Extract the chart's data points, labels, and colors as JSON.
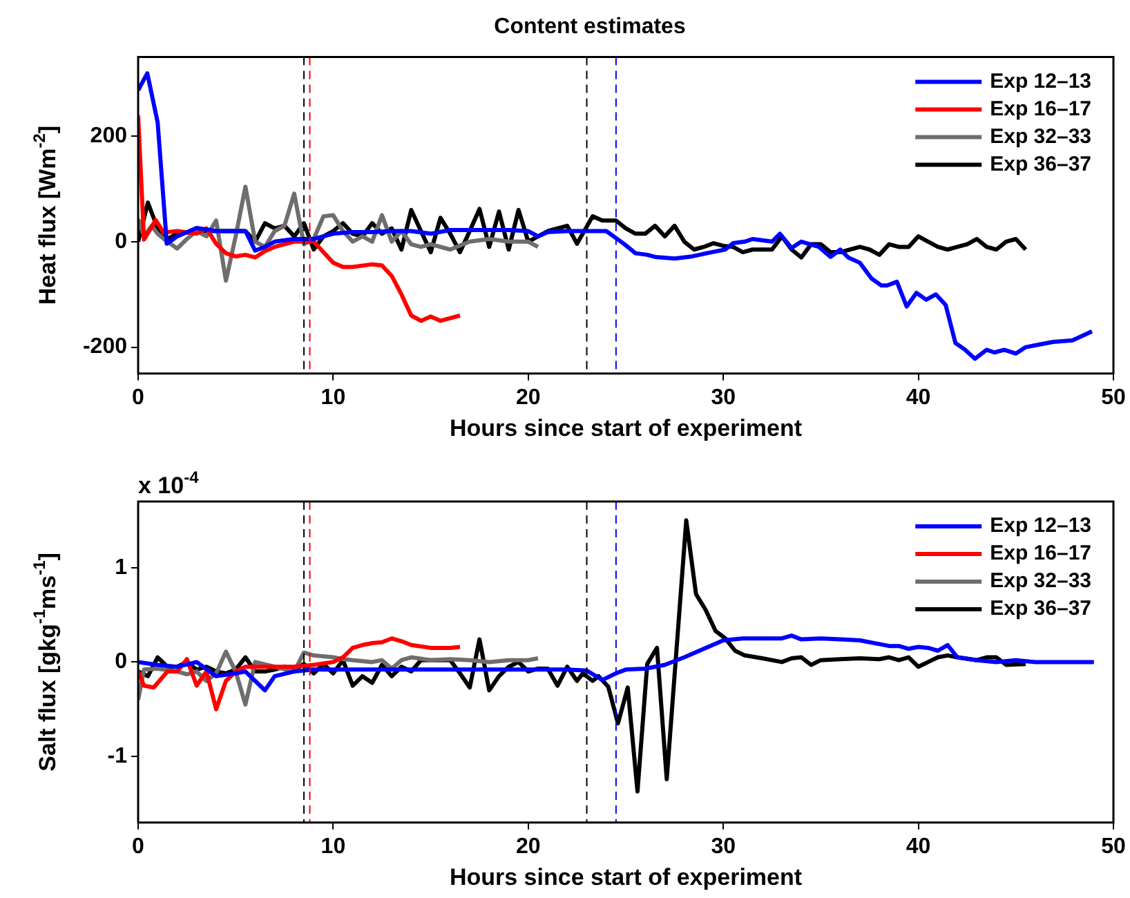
{
  "chart_data": [
    {
      "type": "line",
      "title": "Content estimates",
      "xlabel": "Hours since start of experiment",
      "ylabel": "Heat flux [Wm$^{-2}$]",
      "xlim": [
        0,
        50
      ],
      "xticks": [
        0,
        10,
        20,
        30,
        40,
        50
      ],
      "ylim": [
        -250,
        350
      ],
      "yticks": [
        -200,
        0,
        200
      ],
      "grid": false,
      "legend": "top right",
      "marker": "none",
      "ref_lines": [
        {
          "axis": "x",
          "value": 8.5,
          "color": "#000000",
          "line_style": "dashed"
        },
        {
          "axis": "x",
          "value": 8.8,
          "color": "#ff0000",
          "line_style": "dashed"
        },
        {
          "axis": "x",
          "value": 23,
          "color": "#000000",
          "line_style": "dashed"
        },
        {
          "axis": "x",
          "value": 24.5,
          "color": "#0000ff",
          "line_style": "dashed"
        }
      ],
      "series": [
        {
          "name": "Exp 12–13",
          "color": "#0000ff",
          "x": [
            0,
            0.47,
            1,
            1.47,
            2,
            3,
            4,
            5,
            5.5,
            6,
            6.5,
            7,
            8,
            9,
            10,
            11,
            12,
            13,
            14,
            15,
            16,
            17,
            18,
            19,
            20,
            20.5,
            21,
            22,
            23,
            24,
            24.9,
            25.5,
            26.1,
            26.5,
            27.5,
            28.4,
            29.4,
            30.1,
            30.5,
            31.1,
            31.5,
            32.5,
            32.9,
            33.5,
            34,
            34.9,
            35.5,
            36,
            36.4,
            37,
            37.6,
            38.1,
            38.4,
            38.9,
            39.4,
            39.9,
            40.4,
            40.9,
            41.4,
            41.9,
            42.4,
            42.9,
            43.5,
            43.9,
            44.4,
            45,
            45.5,
            46.2,
            46.9,
            47.9,
            48.9
          ],
          "values": [
            287,
            319,
            226,
            -4,
            10,
            26,
            20,
            20,
            20,
            -17,
            -10,
            0,
            5,
            5,
            15,
            18,
            18,
            20,
            20,
            15,
            22,
            22,
            22,
            22,
            20,
            10,
            18,
            20,
            20,
            20,
            -4,
            -22,
            -25,
            -29,
            -32,
            -28,
            -20,
            -15,
            -3,
            0,
            5,
            0,
            15,
            -12,
            0,
            -10,
            -29,
            -15,
            -30,
            -40,
            -70,
            -83,
            -83,
            -76,
            -123,
            -97,
            -110,
            -100,
            -120,
            -192,
            -205,
            -222,
            -205,
            -210,
            -205,
            -212,
            -200,
            -195,
            -190,
            -187,
            -170
          ]
        },
        {
          "name": "Exp 16–17",
          "color": "#ff0000",
          "x": [
            0,
            0.3,
            0.6,
            0.9,
            1.3,
            2,
            3,
            3.5,
            4,
            4.5,
            5,
            5.5,
            6,
            6.5,
            7,
            8,
            9,
            9.5,
            10,
            10.5,
            11,
            12,
            12.5,
            13,
            13.5,
            14,
            14.5,
            15,
            15.5,
            16,
            16.5
          ],
          "values": [
            239,
            4,
            22,
            41,
            17,
            20,
            15,
            25,
            -4,
            -22,
            -28,
            -25,
            -30,
            -18,
            -10,
            0,
            0,
            -20,
            -40,
            -48,
            -48,
            -43,
            -45,
            -65,
            -100,
            -140,
            -150,
            -142,
            -150,
            -145,
            -140
          ]
        },
        {
          "name": "Exp 32–33",
          "color": "#6e6e6e",
          "x": [
            0,
            0.3,
            0.7,
            1,
            1.5,
            2,
            2.5,
            3,
            3.5,
            4,
            4.5,
            5,
            5.5,
            6,
            6.5,
            7,
            7.5,
            8,
            8.5,
            9,
            9.5,
            10,
            10.5,
            11,
            11.5,
            12,
            12.5,
            13,
            13.5,
            14,
            14.5,
            15,
            16,
            17,
            18,
            19,
            20,
            20.5
          ],
          "values": [
            43,
            10,
            30,
            15,
            0,
            -13,
            5,
            20,
            10,
            40,
            -74,
            10,
            104,
            0,
            -10,
            20,
            30,
            91,
            -5,
            5,
            48,
            50,
            20,
            0,
            10,
            0,
            50,
            0,
            20,
            -5,
            -10,
            -5,
            -15,
            0,
            5,
            0,
            0,
            -10
          ]
        },
        {
          "name": "Exp 36–37",
          "color": "#000000",
          "x": [
            0,
            0.5,
            1,
            1.5,
            2,
            3,
            4,
            5,
            5.5,
            6,
            6.5,
            7,
            7.5,
            8,
            8.5,
            9,
            9.5,
            10,
            10.5,
            11,
            11.5,
            12,
            12.5,
            13,
            13.5,
            14,
            14.5,
            15,
            15.5,
            16,
            16.5,
            17,
            17.5,
            18,
            18.5,
            19,
            19.5,
            20,
            21,
            21.5,
            22,
            22.5,
            23.3,
            23.8,
            24.5,
            25,
            25.5,
            26,
            26.5,
            27,
            27.5,
            28,
            28.5,
            29,
            29.5,
            30,
            30.5,
            31,
            31.5,
            32,
            32.5,
            33,
            33.5,
            34,
            34.5,
            35,
            35.5,
            36,
            36.5,
            37,
            37.5,
            38,
            38.5,
            39,
            39.5,
            40,
            40.5,
            41,
            41.5,
            42,
            42.5,
            43,
            43.5,
            44,
            44.5,
            45,
            45.5
          ],
          "values": [
            0,
            74,
            25,
            5,
            15,
            20,
            20,
            20,
            20,
            0,
            35,
            25,
            30,
            10,
            35,
            -15,
            10,
            20,
            35,
            15,
            10,
            35,
            15,
            25,
            -15,
            60,
            20,
            -20,
            45,
            15,
            -20,
            20,
            62,
            -10,
            57,
            -15,
            60,
            0,
            20,
            25,
            30,
            -4,
            48,
            40,
            40,
            25,
            15,
            15,
            30,
            10,
            30,
            0,
            -15,
            -10,
            -3,
            -8,
            -10,
            -20,
            -15,
            -15,
            -15,
            10,
            -15,
            -30,
            -5,
            -5,
            -20,
            -20,
            -15,
            -10,
            -15,
            -25,
            -5,
            -10,
            -10,
            10,
            0,
            -10,
            -15,
            -10,
            -5,
            5,
            -10,
            -15,
            0,
            5,
            -15
          ]
        }
      ]
    },
    {
      "type": "line",
      "xlabel": "Hours since start of experiment",
      "ylabel": "Salt flux [gkg$^{-1}$ms$^{-1}$]",
      "annotations": [
        "x 10$^{-4}$"
      ],
      "xlim": [
        0,
        50
      ],
      "xticks": [
        0,
        10,
        20,
        30,
        40,
        50
      ],
      "ylim": [
        -1.7,
        1.7
      ],
      "yticks": [
        -1,
        0,
        1
      ],
      "grid": false,
      "legend": "top right",
      "marker": "none",
      "ref_lines": [
        {
          "axis": "x",
          "value": 8.5,
          "color": "#000000",
          "line_style": "dashed"
        },
        {
          "axis": "x",
          "value": 8.8,
          "color": "#ff0000",
          "line_style": "dashed"
        },
        {
          "axis": "x",
          "value": 23,
          "color": "#000000",
          "line_style": "dashed"
        },
        {
          "axis": "x",
          "value": 24.5,
          "color": "#0000ff",
          "line_style": "dashed"
        }
      ],
      "series": [
        {
          "name": "Exp 12–13",
          "color": "#0000ff",
          "x": [
            0,
            1,
            2,
            3,
            4,
            5,
            5.5,
            6,
            6.5,
            7,
            8,
            9,
            10,
            12,
            14,
            16,
            18,
            20,
            22,
            23,
            23.8,
            24.5,
            25,
            26,
            27,
            28,
            29,
            30,
            31,
            32,
            33,
            33.5,
            34,
            35,
            36,
            37,
            38,
            38.5,
            39,
            39.5,
            40,
            40.5,
            41,
            41.5,
            42,
            43,
            44,
            45,
            46,
            47,
            48,
            49
          ],
          "values": [
            0,
            -0.03,
            -0.05,
            0,
            -0.15,
            -0.12,
            -0.1,
            -0.2,
            -0.3,
            -0.15,
            -0.1,
            -0.08,
            -0.08,
            -0.08,
            -0.08,
            -0.08,
            -0.08,
            -0.08,
            -0.08,
            -0.09,
            -0.19,
            -0.12,
            -0.08,
            -0.07,
            -0.03,
            0.05,
            0.14,
            0.23,
            0.25,
            0.25,
            0.25,
            0.28,
            0.24,
            0.25,
            0.24,
            0.23,
            0.19,
            0.17,
            0.17,
            0.14,
            0.16,
            0.15,
            0.12,
            0.18,
            0.05,
            0.02,
            0,
            0.02,
            0,
            0,
            0,
            0
          ]
        },
        {
          "name": "Exp 16–17",
          "color": "#ff0000",
          "x": [
            0,
            0.3,
            0.8,
            1.5,
            2,
            2.5,
            3,
            3.5,
            4,
            4.5,
            5,
            5.5,
            6,
            7,
            8,
            9,
            10,
            10.5,
            11,
            11.5,
            12,
            12.5,
            13,
            13.5,
            14,
            15,
            16,
            16.5
          ],
          "values": [
            -0.1,
            -0.25,
            -0.27,
            -0.1,
            -0.1,
            0.03,
            -0.25,
            -0.1,
            -0.5,
            -0.2,
            -0.1,
            -0.05,
            -0.05,
            -0.05,
            -0.05,
            -0.03,
            0,
            0.05,
            0.15,
            0.18,
            0.2,
            0.21,
            0.25,
            0.22,
            0.18,
            0.15,
            0.15,
            0.16
          ]
        },
        {
          "name": "Exp 32–33",
          "color": "#6e6e6e",
          "x": [
            0,
            0.3,
            1,
            2,
            2.5,
            3,
            3.5,
            4,
            4.5,
            5,
            5.5,
            6,
            7,
            8,
            8.5,
            9,
            10,
            10.5,
            11,
            12,
            12.5,
            13,
            13.5,
            14,
            15,
            16,
            17,
            18,
            19,
            20,
            20.5
          ],
          "values": [
            -0.4,
            -0.08,
            -0.07,
            -0.1,
            -0.13,
            -0.1,
            -0.2,
            -0.12,
            0.11,
            -0.1,
            -0.45,
            0,
            -0.05,
            -0.1,
            0.1,
            0.07,
            0.05,
            0.03,
            0.02,
            0,
            0.02,
            -0.07,
            0.02,
            0.05,
            0.02,
            0.03,
            0.02,
            0,
            0.02,
            0.02,
            0.04
          ]
        },
        {
          "name": "Exp 36–37",
          "color": "#000000",
          "x": [
            0,
            0.5,
            1,
            1.5,
            2,
            2.5,
            3,
            3.5,
            4,
            4.5,
            5,
            5.5,
            6,
            6.5,
            7,
            7.5,
            8,
            8.5,
            9,
            9.5,
            10,
            10.5,
            11,
            11.5,
            12,
            12.5,
            13,
            13.5,
            14,
            14.5,
            15,
            15.5,
            16,
            16.5,
            17,
            17.5,
            18,
            18.5,
            19,
            19.5,
            20,
            20.5,
            21,
            21.5,
            22,
            22.5,
            22.8,
            23.3,
            23.6,
            24.1,
            24.6,
            25.1,
            25.6,
            26.1,
            26.6,
            27.1,
            28.1,
            28.6,
            29.1,
            29.6,
            30.1,
            30.6,
            31.1,
            32,
            33,
            33.5,
            34,
            34.5,
            35,
            36,
            37,
            38,
            38.5,
            39,
            39.5,
            40,
            40.5,
            41,
            41.5,
            42,
            43,
            43.5,
            44,
            44.5,
            45.5
          ],
          "values": [
            -0.1,
            -0.15,
            0.05,
            -0.05,
            -0.05,
            0,
            -0.08,
            -0.05,
            -0.1,
            -0.12,
            -0.08,
            0.05,
            -0.1,
            -0.1,
            -0.08,
            -0.05,
            -0.08,
            -0.02,
            -0.12,
            -0.02,
            -0.12,
            0.02,
            -0.25,
            -0.15,
            -0.22,
            -0.03,
            -0.15,
            -0.05,
            -0.1,
            0.02,
            0.02,
            0.02,
            0.02,
            -0.12,
            -0.27,
            0.24,
            -0.3,
            -0.15,
            -0.05,
            0,
            -0.1,
            -0.07,
            -0.07,
            -0.25,
            -0.05,
            -0.2,
            -0.12,
            -0.2,
            -0.15,
            -0.26,
            -0.65,
            -0.27,
            -1.37,
            -0.02,
            0.15,
            -1.24,
            1.5,
            0.72,
            0.55,
            0.33,
            0.25,
            0.12,
            0.07,
            0.04,
            0,
            0.04,
            0.05,
            -0.03,
            0.02,
            0.03,
            0.04,
            0.03,
            0.05,
            0.02,
            0.05,
            -0.05,
            0,
            0.05,
            0.07,
            0.05,
            0.02,
            0.05,
            0.05,
            -0.03,
            -0.02
          ]
        }
      ]
    }
  ]
}
